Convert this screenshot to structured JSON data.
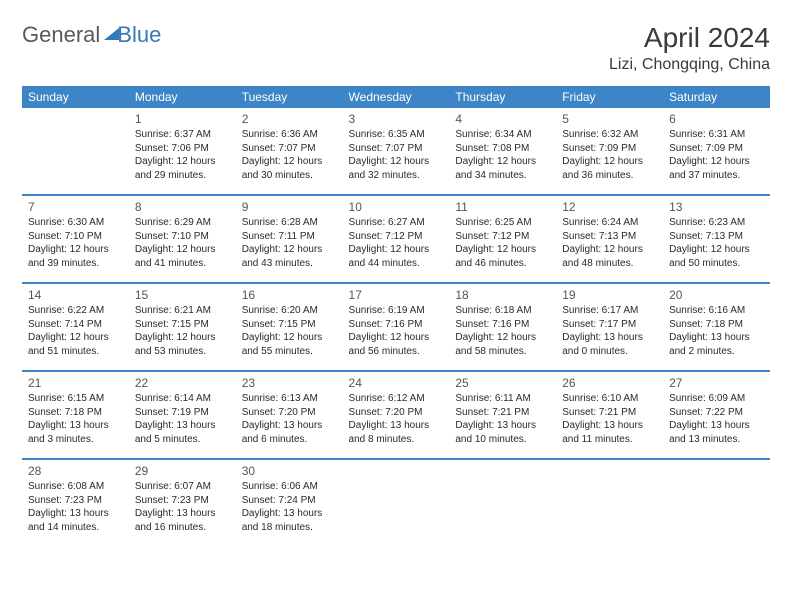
{
  "logo": {
    "part1": "General",
    "part2": "Blue"
  },
  "title": "April 2024",
  "location": "Lizi, Chongqing, China",
  "colors": {
    "header_bg": "#3d85c6",
    "header_fg": "#ffffff",
    "accent": "#3478b9",
    "text": "#2a2a2a",
    "muted": "#555555",
    "logo_gray": "#5a5a5a"
  },
  "weekdays": [
    "Sunday",
    "Monday",
    "Tuesday",
    "Wednesday",
    "Thursday",
    "Friday",
    "Saturday"
  ],
  "weeks": [
    [
      null,
      {
        "n": 1,
        "sr": "6:37 AM",
        "ss": "7:06 PM",
        "dl": "12 hours and 29 minutes."
      },
      {
        "n": 2,
        "sr": "6:36 AM",
        "ss": "7:07 PM",
        "dl": "12 hours and 30 minutes."
      },
      {
        "n": 3,
        "sr": "6:35 AM",
        "ss": "7:07 PM",
        "dl": "12 hours and 32 minutes."
      },
      {
        "n": 4,
        "sr": "6:34 AM",
        "ss": "7:08 PM",
        "dl": "12 hours and 34 minutes."
      },
      {
        "n": 5,
        "sr": "6:32 AM",
        "ss": "7:09 PM",
        "dl": "12 hours and 36 minutes."
      },
      {
        "n": 6,
        "sr": "6:31 AM",
        "ss": "7:09 PM",
        "dl": "12 hours and 37 minutes."
      }
    ],
    [
      {
        "n": 7,
        "sr": "6:30 AM",
        "ss": "7:10 PM",
        "dl": "12 hours and 39 minutes."
      },
      {
        "n": 8,
        "sr": "6:29 AM",
        "ss": "7:10 PM",
        "dl": "12 hours and 41 minutes."
      },
      {
        "n": 9,
        "sr": "6:28 AM",
        "ss": "7:11 PM",
        "dl": "12 hours and 43 minutes."
      },
      {
        "n": 10,
        "sr": "6:27 AM",
        "ss": "7:12 PM",
        "dl": "12 hours and 44 minutes."
      },
      {
        "n": 11,
        "sr": "6:25 AM",
        "ss": "7:12 PM",
        "dl": "12 hours and 46 minutes."
      },
      {
        "n": 12,
        "sr": "6:24 AM",
        "ss": "7:13 PM",
        "dl": "12 hours and 48 minutes."
      },
      {
        "n": 13,
        "sr": "6:23 AM",
        "ss": "7:13 PM",
        "dl": "12 hours and 50 minutes."
      }
    ],
    [
      {
        "n": 14,
        "sr": "6:22 AM",
        "ss": "7:14 PM",
        "dl": "12 hours and 51 minutes."
      },
      {
        "n": 15,
        "sr": "6:21 AM",
        "ss": "7:15 PM",
        "dl": "12 hours and 53 minutes."
      },
      {
        "n": 16,
        "sr": "6:20 AM",
        "ss": "7:15 PM",
        "dl": "12 hours and 55 minutes."
      },
      {
        "n": 17,
        "sr": "6:19 AM",
        "ss": "7:16 PM",
        "dl": "12 hours and 56 minutes."
      },
      {
        "n": 18,
        "sr": "6:18 AM",
        "ss": "7:16 PM",
        "dl": "12 hours and 58 minutes."
      },
      {
        "n": 19,
        "sr": "6:17 AM",
        "ss": "7:17 PM",
        "dl": "13 hours and 0 minutes."
      },
      {
        "n": 20,
        "sr": "6:16 AM",
        "ss": "7:18 PM",
        "dl": "13 hours and 2 minutes."
      }
    ],
    [
      {
        "n": 21,
        "sr": "6:15 AM",
        "ss": "7:18 PM",
        "dl": "13 hours and 3 minutes."
      },
      {
        "n": 22,
        "sr": "6:14 AM",
        "ss": "7:19 PM",
        "dl": "13 hours and 5 minutes."
      },
      {
        "n": 23,
        "sr": "6:13 AM",
        "ss": "7:20 PM",
        "dl": "13 hours and 6 minutes."
      },
      {
        "n": 24,
        "sr": "6:12 AM",
        "ss": "7:20 PM",
        "dl": "13 hours and 8 minutes."
      },
      {
        "n": 25,
        "sr": "6:11 AM",
        "ss": "7:21 PM",
        "dl": "13 hours and 10 minutes."
      },
      {
        "n": 26,
        "sr": "6:10 AM",
        "ss": "7:21 PM",
        "dl": "13 hours and 11 minutes."
      },
      {
        "n": 27,
        "sr": "6:09 AM",
        "ss": "7:22 PM",
        "dl": "13 hours and 13 minutes."
      }
    ],
    [
      {
        "n": 28,
        "sr": "6:08 AM",
        "ss": "7:23 PM",
        "dl": "13 hours and 14 minutes."
      },
      {
        "n": 29,
        "sr": "6:07 AM",
        "ss": "7:23 PM",
        "dl": "13 hours and 16 minutes."
      },
      {
        "n": 30,
        "sr": "6:06 AM",
        "ss": "7:24 PM",
        "dl": "13 hours and 18 minutes."
      },
      null,
      null,
      null,
      null
    ]
  ],
  "labels": {
    "sunrise_prefix": "Sunrise: ",
    "sunset_prefix": "Sunset: ",
    "daylight_prefix": "Daylight: "
  }
}
